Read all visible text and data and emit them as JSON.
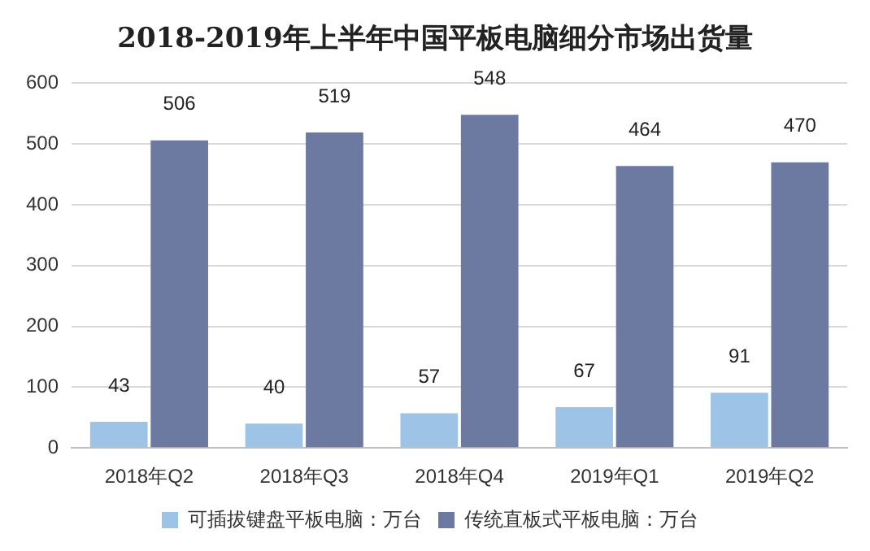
{
  "chart_data": {
    "type": "bar",
    "title": "2018-2019年上半年中国平板电脑细分市场出货量",
    "categories": [
      "2018年Q2",
      "2018年Q3",
      "2018年Q4",
      "2019年Q1",
      "2019年Q2"
    ],
    "series": [
      {
        "name": "可插拔键盘平板电脑：万台",
        "color": "#9dc3e6",
        "values": [
          43,
          40,
          57,
          67,
          91
        ]
      },
      {
        "name": "传统直板式平板电脑：万台",
        "color": "#6c7aa1",
        "values": [
          506,
          519,
          548,
          464,
          470
        ]
      }
    ],
    "ylim": [
      0,
      600
    ],
    "yticks": [
      0,
      100,
      200,
      300,
      400,
      500,
      600
    ],
    "grid": "y",
    "legend": "bottom",
    "data_labels": true
  }
}
